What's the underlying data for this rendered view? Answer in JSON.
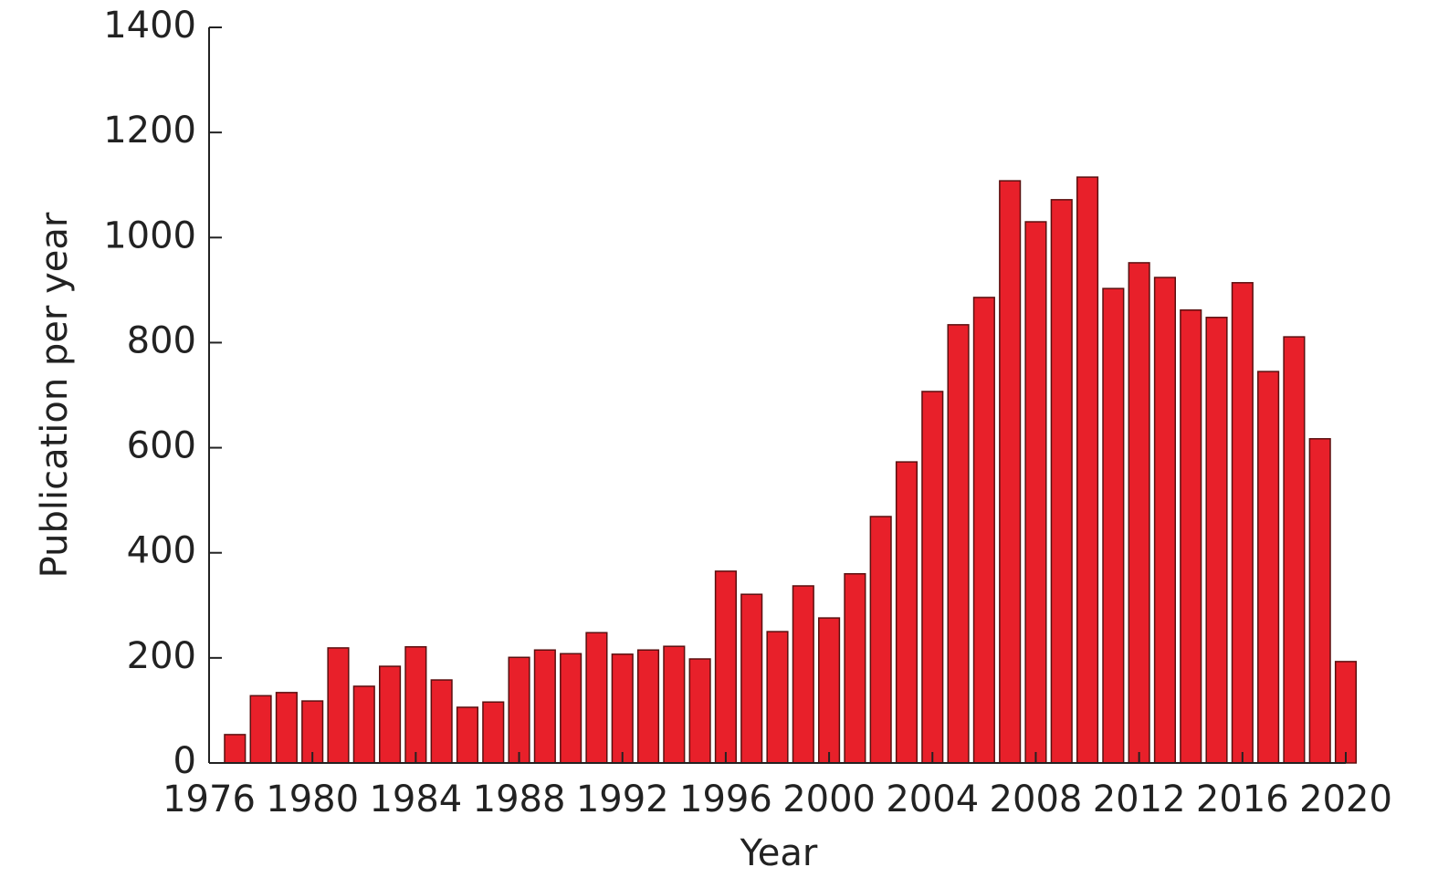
{
  "chart_data": {
    "type": "bar",
    "x": [
      1977,
      1978,
      1979,
      1980,
      1981,
      1982,
      1983,
      1984,
      1985,
      1986,
      1987,
      1988,
      1989,
      1990,
      1991,
      1992,
      1993,
      1994,
      1995,
      1996,
      1997,
      1998,
      1999,
      2000,
      2001,
      2002,
      2003,
      2004,
      2005,
      2006,
      2007,
      2008,
      2009,
      2010,
      2011,
      2012,
      2013,
      2014,
      2015,
      2016,
      2017,
      2018,
      2019,
      2020
    ],
    "values": [
      54,
      128,
      134,
      118,
      219,
      146,
      184,
      221,
      158,
      106,
      116,
      201,
      215,
      208,
      248,
      207,
      215,
      222,
      198,
      365,
      321,
      250,
      337,
      276,
      360,
      469,
      573,
      707,
      834,
      886,
      1108,
      1030,
      1072,
      1115,
      903,
      952,
      924,
      862,
      848,
      914,
      745,
      811,
      617,
      193
    ],
    "color": "#e8202a",
    "xlabel": "Year",
    "ylabel": "Publication per year",
    "xlim": [
      1976,
      2020
    ],
    "xticks": [
      1976,
      1980,
      1984,
      1988,
      1992,
      1996,
      2000,
      2004,
      2008,
      2012,
      2016,
      2020
    ],
    "ylim": [
      0,
      1400
    ],
    "yticks": [
      0,
      200,
      400,
      600,
      800,
      1000,
      1200,
      1400
    ]
  }
}
